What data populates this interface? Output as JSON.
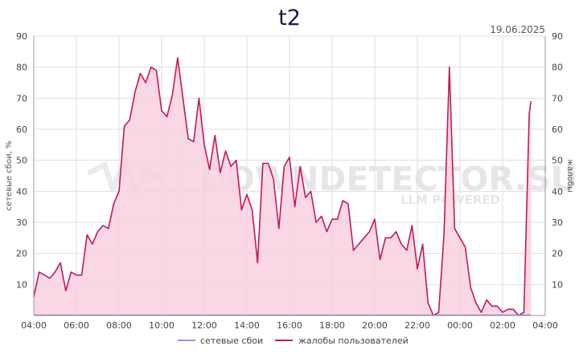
{
  "chart_data": {
    "type": "line",
    "title": "t2",
    "date": "19.06.2025",
    "ylabel_left": "сетевые сбои, %",
    "ylabel_right": "жалобы",
    "ylim": [
      0,
      90
    ],
    "yticks": [
      "10",
      "20",
      "30",
      "40",
      "50",
      "60",
      "70",
      "80",
      "90"
    ],
    "xticks": [
      "04:00",
      "06:00",
      "08:00",
      "10:00",
      "12:00",
      "14:00",
      "16:00",
      "18:00",
      "20:00",
      "22:00",
      "00:00",
      "02:00",
      "04:00"
    ],
    "xlim_hours": [
      0,
      24
    ],
    "watermark": {
      "main": "DOWNDETECTOR.SU",
      "sub": "LLM POWERED"
    },
    "colors": {
      "complaints_line": "#c2185b",
      "complaints_fill": "#f8d0df",
      "outages_line": "#7b68ee",
      "grid": "#dddddd"
    },
    "series": [
      {
        "name": "сетевые сбои",
        "x": [
          0,
          23.33
        ],
        "values": [
          0,
          0
        ]
      },
      {
        "name": "жалобы пользователей",
        "x": [
          0,
          0.25,
          0.5,
          0.75,
          1.0,
          1.25,
          1.5,
          1.75,
          2.0,
          2.25,
          2.5,
          2.75,
          3.0,
          3.25,
          3.5,
          3.75,
          4.0,
          4.25,
          4.5,
          4.75,
          5.0,
          5.25,
          5.5,
          5.75,
          6.0,
          6.25,
          6.5,
          6.75,
          7.0,
          7.25,
          7.5,
          7.75,
          8.0,
          8.25,
          8.5,
          8.75,
          9.0,
          9.25,
          9.5,
          9.75,
          10.0,
          10.25,
          10.5,
          10.75,
          11.0,
          11.25,
          11.5,
          11.75,
          12.0,
          12.25,
          12.5,
          12.75,
          13.0,
          13.25,
          13.5,
          13.75,
          14.0,
          14.25,
          14.5,
          14.75,
          15.0,
          15.25,
          15.5,
          15.75,
          16.0,
          16.25,
          16.5,
          16.75,
          17.0,
          17.25,
          17.5,
          17.75,
          18.0,
          18.25,
          18.5,
          18.75,
          19.0,
          19.25,
          19.5,
          19.75,
          20.0,
          20.25,
          20.5,
          20.75,
          21.0,
          21.25,
          21.5,
          21.75,
          22.0,
          22.25,
          22.5,
          22.75,
          23.0,
          23.25,
          23.33
        ],
        "values": [
          6,
          14,
          13,
          12,
          14,
          17,
          8,
          14,
          13,
          13,
          26,
          23,
          27,
          29,
          28,
          36,
          40,
          61,
          63,
          72,
          78,
          75,
          80,
          79,
          66,
          64,
          71,
          83,
          70,
          57,
          56,
          70,
          55,
          47,
          58,
          46,
          53,
          48,
          50,
          34,
          39,
          34,
          17,
          49,
          49,
          44,
          28,
          48,
          51,
          35,
          48,
          38,
          40,
          30,
          32,
          27,
          31,
          31,
          37,
          36,
          21,
          23,
          25,
          27,
          31,
          18,
          25,
          25,
          27,
          23,
          21,
          29,
          15,
          23,
          4,
          0,
          1,
          26,
          80,
          28,
          25,
          22,
          9,
          4,
          1,
          5,
          3,
          3,
          1,
          2,
          2,
          0,
          1,
          65,
          69
        ]
      }
    ],
    "legend": [
      {
        "label": "сетевые сбои",
        "color": "#7b68ee"
      },
      {
        "label": "жалобы пользователей",
        "color": "#c2185b"
      }
    ]
  }
}
